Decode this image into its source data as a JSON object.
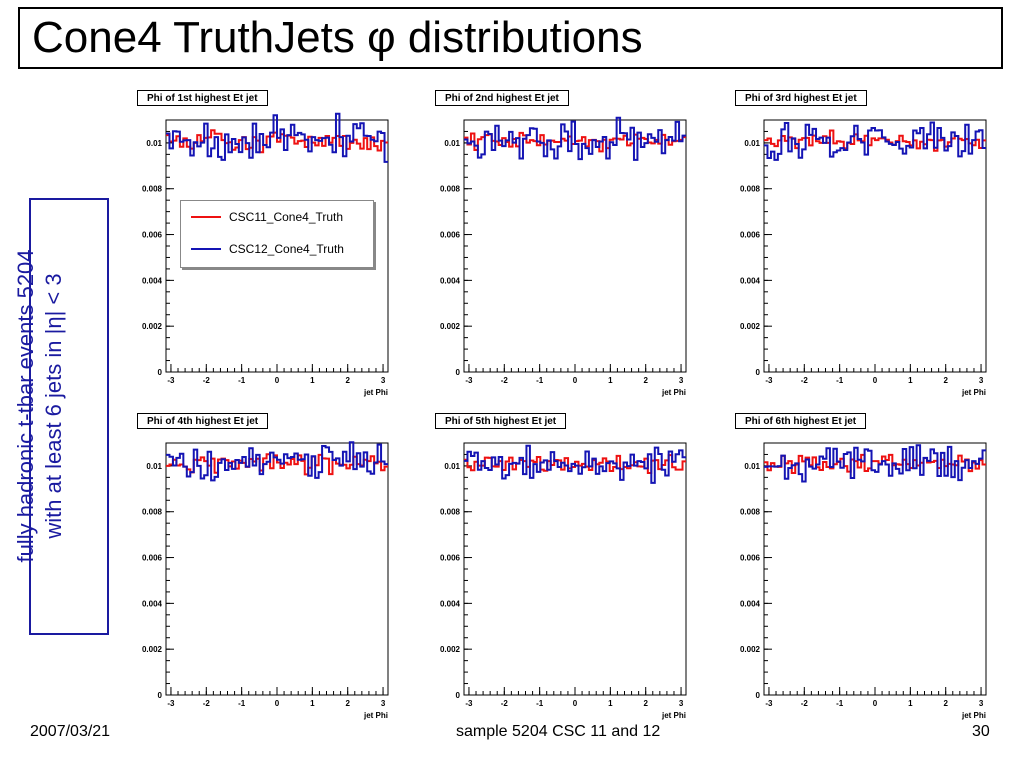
{
  "slide": {
    "title": "Cone4 TruthJets φ distributions",
    "side_line1": "fully hadronic t-tbar events 5204",
    "side_line2": "with at least 6 jets in |η| < 3",
    "footer_date": "2007/03/21",
    "footer_center": "sample 5204 CSC 11 and 12",
    "footer_page": "30"
  },
  "colors": {
    "csc11": "#ee1111",
    "csc12": "#1414b4",
    "side_text": "#1a1aa0"
  },
  "legend": {
    "entries": [
      "CSC11_Cone4_Truth",
      "CSC12_Cone4_Truth"
    ]
  },
  "chart_data": [
    {
      "type": "histogram",
      "title": "Phi of 1st highest Et jet",
      "xlabel": "jet Phi",
      "ylabel": "",
      "xlim": [
        -3.14,
        3.14
      ],
      "ylim": [
        0,
        0.011
      ],
      "level": 0.0101,
      "xticks": [
        "-3",
        "-2",
        "-1",
        "0",
        "1",
        "2",
        "3"
      ],
      "yticks": [
        "0",
        "0.002",
        "0.004",
        "0.006",
        "0.008",
        "0.01"
      ],
      "series": [
        {
          "name": "CSC11_Cone4_Truth",
          "values": []
        },
        {
          "name": "CSC12_Cone4_Truth",
          "values": []
        }
      ]
    },
    {
      "type": "histogram",
      "title": "Phi of 2nd highest Et jet",
      "xlabel": "jet Phi",
      "ylabel": "",
      "xlim": [
        -3.14,
        3.14
      ],
      "ylim": [
        0,
        0.011
      ],
      "level": 0.0101,
      "xticks": [
        "-3",
        "-2",
        "-1",
        "0",
        "1",
        "2",
        "3"
      ],
      "yticks": [
        "0",
        "0.002",
        "0.004",
        "0.006",
        "0.008",
        "0.01"
      ],
      "series": [
        {
          "name": "CSC11_Cone4_Truth",
          "values": []
        },
        {
          "name": "CSC12_Cone4_Truth",
          "values": []
        }
      ]
    },
    {
      "type": "histogram",
      "title": "Phi of 3rd highest Et jet",
      "xlabel": "jet Phi",
      "ylabel": "",
      "xlim": [
        -3.14,
        3.14
      ],
      "ylim": [
        0,
        0.011
      ],
      "level": 0.0101,
      "xticks": [
        "-3",
        "-2",
        "-1",
        "0",
        "1",
        "2",
        "3"
      ],
      "yticks": [
        "0",
        "0.002",
        "0.004",
        "0.006",
        "0.008",
        "0.01"
      ],
      "series": [
        {
          "name": "CSC11_Cone4_Truth",
          "values": []
        },
        {
          "name": "CSC12_Cone4_Truth",
          "values": []
        }
      ]
    },
    {
      "type": "histogram",
      "title": "Phi of 4th highest Et jet",
      "xlabel": "jet Phi",
      "ylabel": "",
      "xlim": [
        -3.14,
        3.14
      ],
      "ylim": [
        0,
        0.011
      ],
      "level": 0.0101,
      "xticks": [
        "-3",
        "-2",
        "-1",
        "0",
        "1",
        "2",
        "3"
      ],
      "yticks": [
        "0",
        "0.002",
        "0.004",
        "0.006",
        "0.008",
        "0.01"
      ],
      "series": [
        {
          "name": "CSC11_Cone4_Truth",
          "values": []
        },
        {
          "name": "CSC12_Cone4_Truth",
          "values": []
        }
      ]
    },
    {
      "type": "histogram",
      "title": "Phi of 5th highest Et jet",
      "xlabel": "jet Phi",
      "ylabel": "",
      "xlim": [
        -3.14,
        3.14
      ],
      "ylim": [
        0,
        0.011
      ],
      "level": 0.0101,
      "xticks": [
        "-3",
        "-2",
        "-1",
        "0",
        "1",
        "2",
        "3"
      ],
      "yticks": [
        "0",
        "0.002",
        "0.004",
        "0.006",
        "0.008",
        "0.01"
      ],
      "series": [
        {
          "name": "CSC11_Cone4_Truth",
          "values": []
        },
        {
          "name": "CSC12_Cone4_Truth",
          "values": []
        }
      ]
    },
    {
      "type": "histogram",
      "title": "Phi of 6th highest Et jet",
      "xlabel": "jet Phi",
      "ylabel": "",
      "xlim": [
        -3.14,
        3.14
      ],
      "ylim": [
        0,
        0.011
      ],
      "level": 0.0101,
      "xticks": [
        "-3",
        "-2",
        "-1",
        "0",
        "1",
        "2",
        "3"
      ],
      "yticks": [
        "0",
        "0.002",
        "0.004",
        "0.006",
        "0.008",
        "0.01"
      ],
      "series": [
        {
          "name": "CSC11_Cone4_Truth",
          "values": []
        },
        {
          "name": "CSC12_Cone4_Truth",
          "values": []
        }
      ]
    }
  ]
}
